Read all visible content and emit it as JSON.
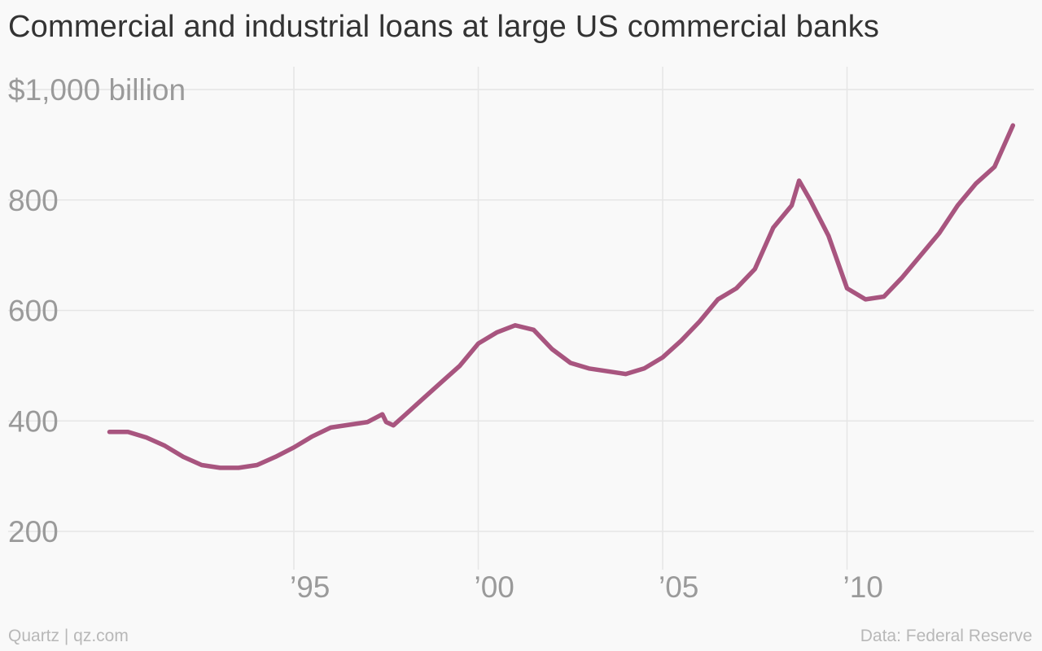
{
  "chart_data": {
    "type": "line",
    "title": "Commercial and industrial loans at large US commercial banks",
    "xlabel": "",
    "ylabel": "",
    "ylim": [
      200,
      1000
    ],
    "xlim": [
      1990,
      2014.6
    ],
    "y_ticks": [
      {
        "value": 1000,
        "label": "$1,000 billion"
      },
      {
        "value": 800,
        "label": "800"
      },
      {
        "value": 600,
        "label": "600"
      },
      {
        "value": 400,
        "label": "400"
      },
      {
        "value": 200,
        "label": "200"
      }
    ],
    "x_ticks": [
      {
        "value": 1995,
        "label": "’95"
      },
      {
        "value": 2000,
        "label": "’00"
      },
      {
        "value": 2005,
        "label": "’05"
      },
      {
        "value": 2010,
        "label": "’10"
      }
    ],
    "grid": true,
    "series": [
      {
        "color": "#a8557f",
        "x": [
          1990.0,
          1990.5,
          1991.0,
          1991.5,
          1992.0,
          1992.5,
          1993.0,
          1993.5,
          1994.0,
          1994.5,
          1995.0,
          1995.5,
          1996.0,
          1996.5,
          1997.0,
          1997.4,
          1997.5,
          1997.7,
          1998.0,
          1998.5,
          1999.0,
          1999.5,
          2000.0,
          2000.5,
          2001.0,
          2001.5,
          2002.0,
          2002.5,
          2003.0,
          2003.5,
          2004.0,
          2004.5,
          2005.0,
          2005.5,
          2006.0,
          2006.5,
          2007.0,
          2007.5,
          2008.0,
          2008.5,
          2008.7,
          2009.0,
          2009.5,
          2010.0,
          2010.5,
          2011.0,
          2011.5,
          2012.0,
          2012.5,
          2013.0,
          2013.5,
          2014.0,
          2014.5
        ],
        "y": [
          380,
          380,
          370,
          355,
          335,
          320,
          315,
          315,
          320,
          335,
          352,
          372,
          388,
          393,
          398,
          412,
          398,
          392,
          410,
          440,
          470,
          500,
          540,
          560,
          573,
          565,
          530,
          505,
          495,
          490,
          485,
          495,
          515,
          545,
          580,
          620,
          640,
          675,
          750,
          790,
          835,
          800,
          735,
          640,
          620,
          625,
          660,
          700,
          740,
          790,
          830,
          860,
          935
        ]
      }
    ]
  },
  "footer": {
    "source_left": "Quartz | qz.com",
    "source_right": "Data: Federal Reserve"
  }
}
